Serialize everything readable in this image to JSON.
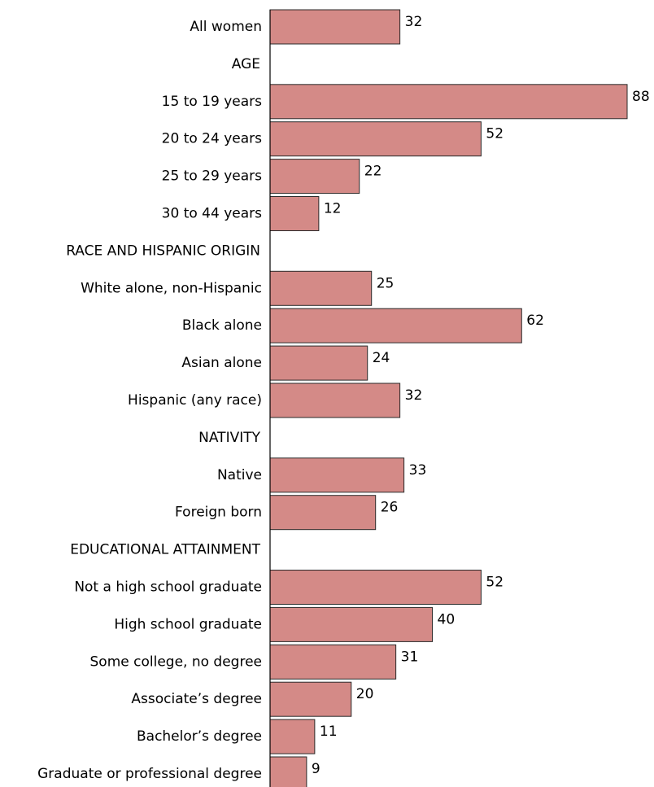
{
  "chart_data": {
    "type": "bar",
    "orientation": "horizontal",
    "bar_color": "#d48a87",
    "bar_edge_color": "#2a2a2a",
    "rows": [
      {
        "kind": "bar",
        "label": "All women",
        "value": 32
      },
      {
        "kind": "group",
        "label": "AGE"
      },
      {
        "kind": "bar",
        "label": "15 to 19 years",
        "value": 88
      },
      {
        "kind": "bar",
        "label": "20 to 24 years",
        "value": 52
      },
      {
        "kind": "bar",
        "label": "25 to 29 years",
        "value": 22
      },
      {
        "kind": "bar",
        "label": "30 to 44 years",
        "value": 12
      },
      {
        "kind": "group",
        "label": "RACE AND HISPANIC ORIGIN"
      },
      {
        "kind": "bar",
        "label": "White alone, non-Hispanic",
        "value": 25
      },
      {
        "kind": "bar",
        "label": "Black alone",
        "value": 62
      },
      {
        "kind": "bar",
        "label": "Asian alone",
        "value": 24
      },
      {
        "kind": "bar",
        "label": "Hispanic (any race)",
        "value": 32
      },
      {
        "kind": "group",
        "label": "NATIVITY"
      },
      {
        "kind": "bar",
        "label": "Native",
        "value": 33
      },
      {
        "kind": "bar",
        "label": "Foreign born",
        "value": 26
      },
      {
        "kind": "group",
        "label": "EDUCATIONAL ATTAINMENT"
      },
      {
        "kind": "bar",
        "label": "Not a high school graduate",
        "value": 52
      },
      {
        "kind": "bar",
        "label": "High school graduate",
        "value": 40
      },
      {
        "kind": "bar",
        "label": "Some college, no degree",
        "value": 31
      },
      {
        "kind": "bar",
        "label": "Associate’s degree",
        "value": 20
      },
      {
        "kind": "bar",
        "label": "Bachelor’s degree",
        "value": 11
      },
      {
        "kind": "bar",
        "label": "Graduate or professional degree",
        "value": 9
      }
    ],
    "xlim": [
      0,
      88
    ],
    "title": "",
    "xlabel": "",
    "ylabel": "",
    "grid": false,
    "legend": "none"
  }
}
